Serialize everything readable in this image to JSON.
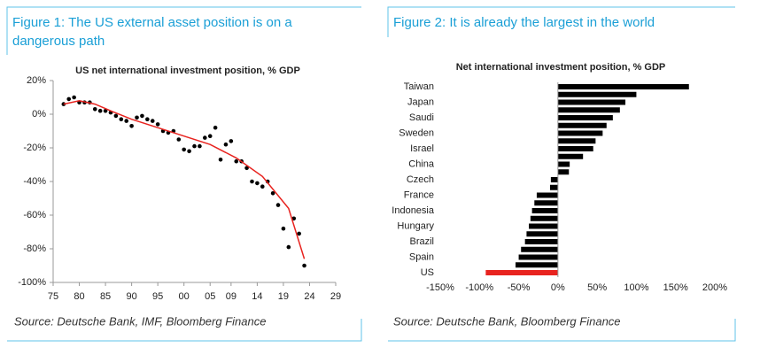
{
  "chart_data": [
    {
      "type": "scatter",
      "caption": [
        "Figure 1: The US external asset position is on a",
        "dangerous path"
      ],
      "title": "US net international investment position, % GDP",
      "source": "Source: Deutsche Bank, IMF, Bloomberg Finance",
      "series": [
        {
          "style": "points",
          "color": "#000000",
          "x": [
            1977,
            1978,
            1979,
            1980,
            1981,
            1982,
            1983,
            1984,
            1985,
            1986,
            1987,
            1988,
            1989,
            1990,
            1991,
            1992,
            1993,
            1994,
            1995,
            1996,
            1997,
            1998,
            1999,
            2000,
            2001,
            2002,
            2003,
            2004,
            2005,
            2006,
            2007,
            2008,
            2009,
            2010,
            2011,
            2012,
            2013,
            2014,
            2015,
            2016,
            2017,
            2018,
            2019,
            2020,
            2021,
            2022,
            2023
          ],
          "values": [
            6,
            9,
            10,
            7,
            7,
            7,
            3,
            2,
            2,
            1,
            -1,
            -3,
            -4,
            -7,
            -2,
            -1,
            -3,
            -4,
            -6,
            -10,
            -11,
            -10,
            -15,
            -21,
            -22,
            -19,
            -19,
            -14,
            -13,
            -8,
            -27,
            -18,
            -16,
            -28,
            -28,
            -32,
            -40,
            -41,
            -43,
            -40,
            -47,
            -54,
            -68,
            -79,
            -62,
            -71,
            -90
          ]
        },
        {
          "style": "line",
          "color": "#e8231f",
          "x": [
            1977,
            1980,
            1983,
            1986,
            1990,
            1995,
            2000,
            2005,
            2010,
            2015,
            2020,
            2023
          ],
          "values": [
            6,
            8,
            6,
            2,
            -3,
            -8,
            -13,
            -18,
            -26,
            -37,
            -56,
            -86
          ]
        }
      ],
      "xlim": [
        1975,
        2029
      ],
      "xticks": [
        {
          "value": 1975,
          "label": "75"
        },
        {
          "value": 1980,
          "label": "80"
        },
        {
          "value": 1985,
          "label": "85"
        },
        {
          "value": 1990,
          "label": "90"
        },
        {
          "value": 1995,
          "label": "95"
        },
        {
          "value": 2000,
          "label": "00"
        },
        {
          "value": 2005,
          "label": "05"
        },
        {
          "value": 2009,
          "label": "09"
        },
        {
          "value": 2014,
          "label": "14"
        },
        {
          "value": 2019,
          "label": "19"
        },
        {
          "value": 2024,
          "label": "24"
        },
        {
          "value": 2029,
          "label": "29"
        }
      ],
      "ylim": [
        -100,
        20
      ],
      "yticks": [
        {
          "value": -100,
          "label": "-100%"
        },
        {
          "value": -80,
          "label": "-80%"
        },
        {
          "value": -60,
          "label": "-60%"
        },
        {
          "value": -40,
          "label": "-40%"
        },
        {
          "value": -20,
          "label": "-20%"
        },
        {
          "value": 0,
          "label": "0%"
        },
        {
          "value": 20,
          "label": "20%"
        }
      ]
    },
    {
      "type": "hbar",
      "caption": [
        "Figure 2: It is already the largest in the world"
      ],
      "title": "Net international investment position, % GDP",
      "source": "Source: Deutsche Bank, Bloomberg Finance",
      "categories": [
        "Taiwan",
        null,
        "Japan",
        null,
        "Saudi",
        null,
        "Sweden",
        null,
        "Israel",
        null,
        "China",
        null,
        "Czech",
        null,
        "France",
        null,
        "Indonesia",
        null,
        "Hungary",
        null,
        "Brazil",
        null,
        "Spain",
        null,
        "US"
      ],
      "values": [
        167,
        100,
        86,
        79,
        70,
        62,
        57,
        48,
        45,
        32,
        15,
        14,
        -9,
        -10,
        -27,
        -30,
        -33,
        -35,
        -37,
        -40,
        -42,
        -47,
        -50,
        -54,
        -92
      ],
      "colors": [
        "#000000",
        "#000000",
        "#000000",
        "#000000",
        "#000000",
        "#000000",
        "#000000",
        "#000000",
        "#000000",
        "#000000",
        "#000000",
        "#000000",
        "#000000",
        "#000000",
        "#000000",
        "#000000",
        "#000000",
        "#000000",
        "#000000",
        "#000000",
        "#000000",
        "#000000",
        "#000000",
        "#000000",
        "#e8231f"
      ],
      "xlim": [
        -150,
        200
      ],
      "xticks": [
        {
          "value": -150,
          "label": "-150%"
        },
        {
          "value": -100,
          "label": "-100%"
        },
        {
          "value": -50,
          "label": "-50%"
        },
        {
          "value": 0,
          "label": "0%"
        },
        {
          "value": 50,
          "label": "50%"
        },
        {
          "value": 100,
          "label": "100%"
        },
        {
          "value": 150,
          "label": "150%"
        },
        {
          "value": 200,
          "label": "200%"
        }
      ]
    }
  ]
}
